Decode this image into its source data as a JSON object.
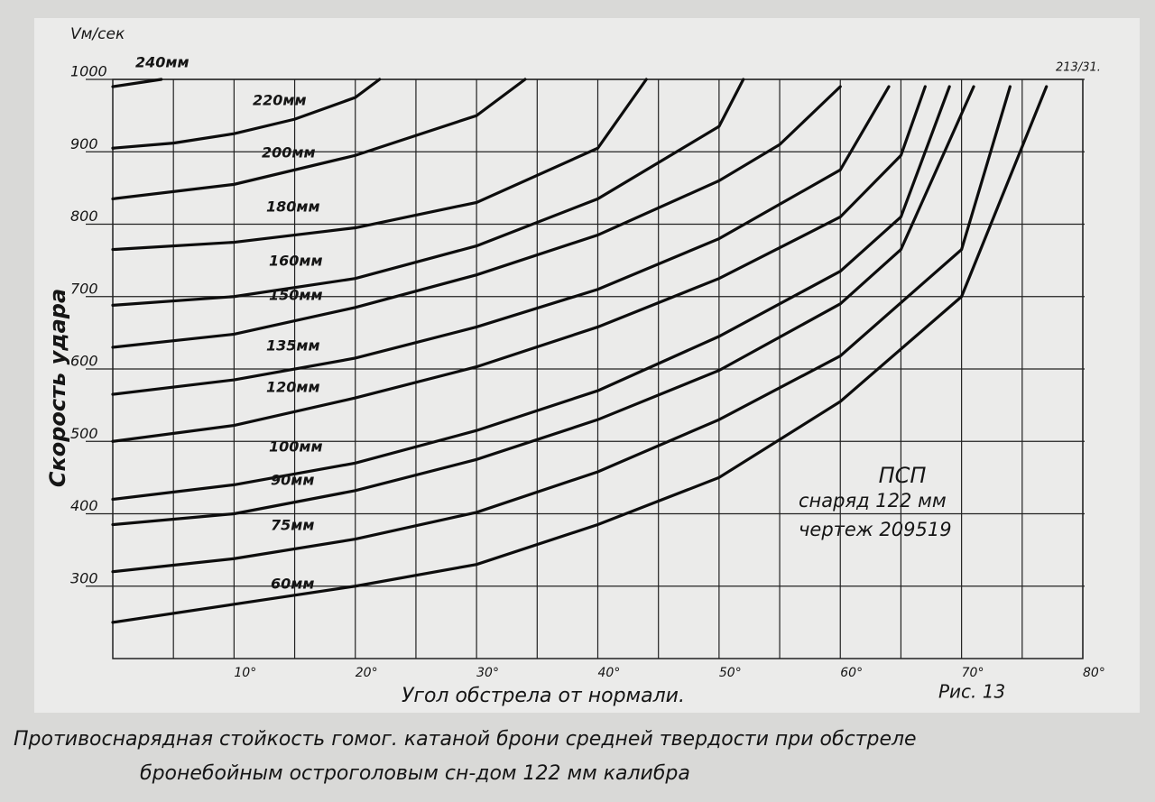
{
  "chart_data": {
    "type": "line",
    "y_unit": "Vм/сек",
    "y_label": "Скорость удара",
    "x_label": "Угол обстрела от нормали.",
    "stamp": "213/31.",
    "figure": "Рис. 13",
    "block": [
      "ПСП",
      "снаряд 122 мм",
      "чертеж 209519"
    ],
    "caption": [
      "Противоснарядная стойкость гомог. катаной брони средней твердости при обстреле",
      "бронебойным остроголовым сн-дом 122 мм калибра"
    ],
    "xlim": [
      0,
      80
    ],
    "ylim": [
      200,
      1000
    ],
    "xticks": [
      {
        "value": 10,
        "label": "10°"
      },
      {
        "value": 20,
        "label": "20°"
      },
      {
        "value": 30,
        "label": "30°"
      },
      {
        "value": 40,
        "label": "40°"
      },
      {
        "value": 50,
        "label": "50°"
      },
      {
        "value": 60,
        "label": "60°"
      },
      {
        "value": 70,
        "label": "70°"
      },
      {
        "value": 80,
        "label": "80°"
      }
    ],
    "x_minor_ticks": [
      5,
      15,
      25,
      35,
      45,
      55,
      65,
      75
    ],
    "yticks": [
      300,
      400,
      500,
      600,
      700,
      800,
      900,
      1000
    ],
    "grid": true,
    "color": "#0d0d0d",
    "series": [
      {
        "name": "240мм",
        "x": [
          0,
          4
        ],
        "values": [
          990,
          1000
        ]
      },
      {
        "name": "220мм",
        "x": [
          0,
          5,
          10,
          15,
          20,
          22
        ],
        "values": [
          905,
          912,
          925,
          945,
          975,
          1000
        ]
      },
      {
        "name": "200мм",
        "x": [
          0,
          10,
          20,
          30,
          34
        ],
        "values": [
          835,
          855,
          895,
          950,
          1000
        ]
      },
      {
        "name": "180мм",
        "x": [
          0,
          10,
          20,
          30,
          40,
          44
        ],
        "values": [
          765,
          775,
          795,
          830,
          905,
          1000
        ]
      },
      {
        "name": "160мм",
        "x": [
          0,
          10,
          20,
          30,
          40,
          50,
          52
        ],
        "values": [
          688,
          700,
          725,
          770,
          835,
          935,
          1000
        ]
      },
      {
        "name": "150мм",
        "x": [
          0,
          10,
          20,
          30,
          40,
          50,
          55,
          60
        ],
        "values": [
          630,
          648,
          685,
          730,
          785,
          860,
          910,
          990
        ]
      },
      {
        "name": "135мм",
        "x": [
          0,
          10,
          20,
          30,
          40,
          50,
          60,
          64
        ],
        "values": [
          565,
          585,
          615,
          658,
          710,
          780,
          875,
          990
        ]
      },
      {
        "name": "120мм",
        "x": [
          0,
          10,
          20,
          30,
          40,
          50,
          60,
          65,
          67
        ],
        "values": [
          500,
          522,
          560,
          603,
          658,
          725,
          810,
          895,
          990
        ]
      },
      {
        "name": "100мм",
        "x": [
          0,
          10,
          20,
          30,
          40,
          50,
          60,
          65,
          69
        ],
        "values": [
          420,
          440,
          470,
          515,
          570,
          645,
          735,
          810,
          990
        ]
      },
      {
        "name": "90мм",
        "x": [
          0,
          10,
          20,
          30,
          40,
          50,
          60,
          65,
          71
        ],
        "values": [
          385,
          400,
          432,
          475,
          530,
          598,
          690,
          765,
          990
        ]
      },
      {
        "name": "75мм",
        "x": [
          0,
          10,
          20,
          30,
          40,
          50,
          60,
          70,
          74
        ],
        "values": [
          320,
          338,
          365,
          402,
          458,
          530,
          618,
          765,
          990
        ]
      },
      {
        "name": "60мм",
        "x": [
          0,
          10,
          20,
          30,
          40,
          50,
          60,
          70,
          77
        ],
        "values": [
          250,
          275,
          300,
          330,
          385,
          450,
          555,
          700,
          990
        ]
      }
    ]
  }
}
